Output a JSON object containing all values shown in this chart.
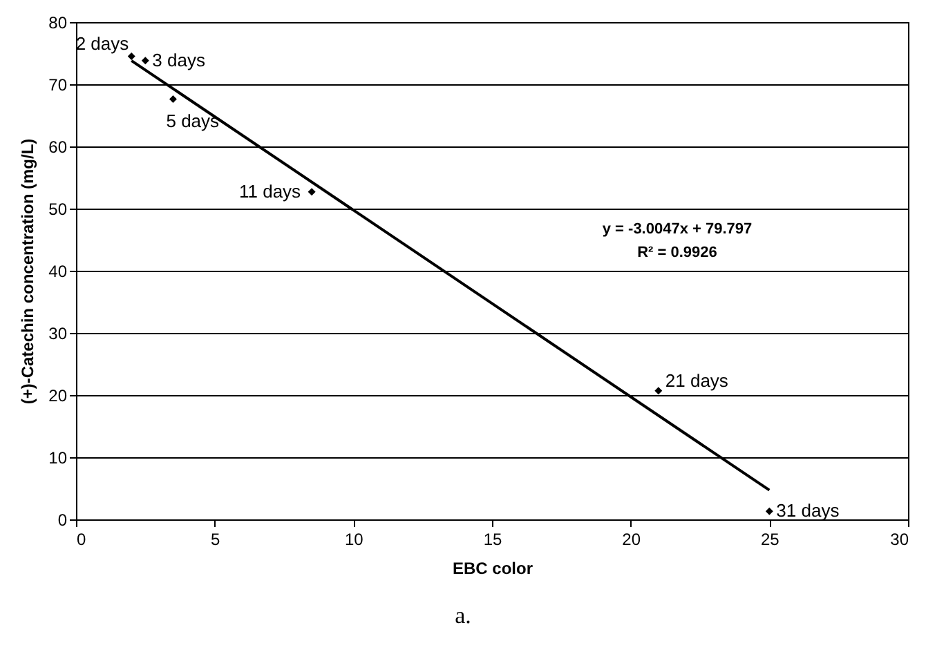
{
  "chart_data": {
    "type": "scatter",
    "xlabel": "EBC color",
    "ylabel": "(+)-Catechin concentration (mg/L)",
    "x": [
      2,
      2.5,
      3.5,
      8.5,
      21,
      25
    ],
    "series": [
      {
        "color": "#000000",
        "marker": "diamond",
        "values": [
          74.5,
          73.8,
          67.6,
          52.7,
          20.7,
          1.3
        ]
      },
      {
        "type": "line",
        "color": "#000000",
        "marker": "none",
        "x": [
          2,
          25
        ],
        "values": [
          73.8,
          4.7
        ]
      }
    ],
    "xlim": [
      0,
      30
    ],
    "xticks": [
      0,
      5,
      10,
      15,
      20,
      25,
      30
    ],
    "ylim": [
      0,
      80
    ],
    "yticks": [
      0,
      10,
      20,
      30,
      40,
      50,
      60,
      70,
      80
    ],
    "grid": "y",
    "annotations": [
      {
        "text": "2 days",
        "x": 2,
        "y": 74.5
      },
      {
        "text": "3 days",
        "x": 2.5,
        "y": 73.8
      },
      {
        "text": "5 days",
        "x": 3.5,
        "y": 67.6
      },
      {
        "text": "11 days",
        "x": 8.5,
        "y": 52.7
      },
      {
        "text": "21 days",
        "x": 21,
        "y": 20.7
      },
      {
        "text": "31 days",
        "x": 25,
        "y": 1.3
      },
      "y = -3.0047x + 79.797",
      "R² = 0.9926",
      "a."
    ]
  }
}
